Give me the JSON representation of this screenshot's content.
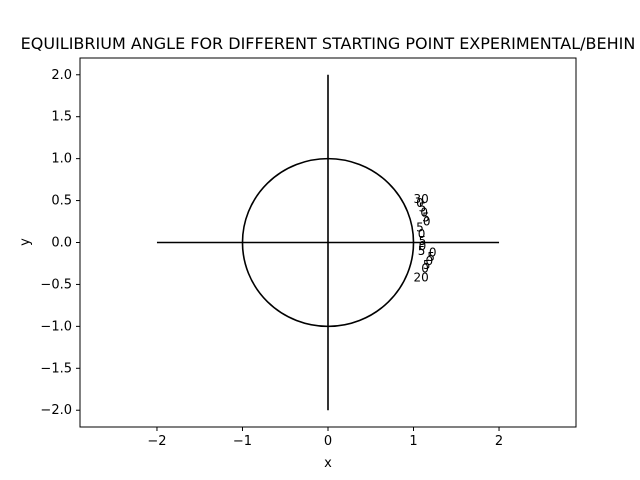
{
  "chart_data": {
    "type": "line",
    "title": "EQUILIBRIUM ANGLE FOR DIFFERENT STARTING POINT EXPERIMENTAL/BEHIN",
    "xlabel": "x",
    "ylabel": "y",
    "xlim": [
      -2.9,
      2.9
    ],
    "ylim": [
      -2.2,
      2.2
    ],
    "xticks": [
      -2,
      -1,
      0,
      1,
      2
    ],
    "yticks": [
      -2.0,
      -1.5,
      -1.0,
      -0.5,
      0.0,
      0.5,
      1.0,
      1.5,
      2.0
    ],
    "xtick_labels": [
      "−2",
      "−1",
      "0",
      "1",
      "2"
    ],
    "ytick_labels": [
      "−2.0",
      "−1.5",
      "−1.0",
      "−0.5",
      "0.0",
      "0.5",
      "1.0",
      "1.5",
      "2.0"
    ],
    "grid": false,
    "line_color": "#000000",
    "series": [
      {
        "kind": "segment",
        "x": [
          -2,
          2
        ],
        "y": [
          0,
          0
        ]
      },
      {
        "kind": "segment",
        "x": [
          0,
          0
        ],
        "y": [
          -2,
          2
        ]
      },
      {
        "kind": "circle",
        "center": [
          0,
          0
        ],
        "radius": 1
      }
    ],
    "point_labels": [
      {
        "text": "30",
        "x": 1.0,
        "y": 0.52
      },
      {
        "text": "0",
        "x": 1.03,
        "y": 0.47
      },
      {
        "text": "5",
        "x": 1.06,
        "y": 0.42
      },
      {
        "text": "0",
        "x": 1.08,
        "y": 0.36
      },
      {
        "text": "5",
        "x": 1.1,
        "y": 0.3
      },
      {
        "text": "0",
        "x": 1.11,
        "y": 0.25
      },
      {
        "text": "5",
        "x": 1.03,
        "y": 0.18
      },
      {
        "text": "0",
        "x": 1.05,
        "y": 0.1
      },
      {
        "text": "5",
        "x": 1.06,
        "y": 0.02
      },
      {
        "text": "0",
        "x": 1.06,
        "y": -0.04
      },
      {
        "text": "5",
        "x": 1.05,
        "y": -0.1
      },
      {
        "text": "0",
        "x": 1.18,
        "y": -0.12
      },
      {
        "text": "5",
        "x": 1.16,
        "y": -0.17
      },
      {
        "text": "0",
        "x": 1.14,
        "y": -0.22
      },
      {
        "text": "5",
        "x": 1.11,
        "y": -0.27
      },
      {
        "text": "0",
        "x": 1.09,
        "y": -0.31
      },
      {
        "text": "20",
        "x": 1.0,
        "y": -0.42
      }
    ]
  }
}
